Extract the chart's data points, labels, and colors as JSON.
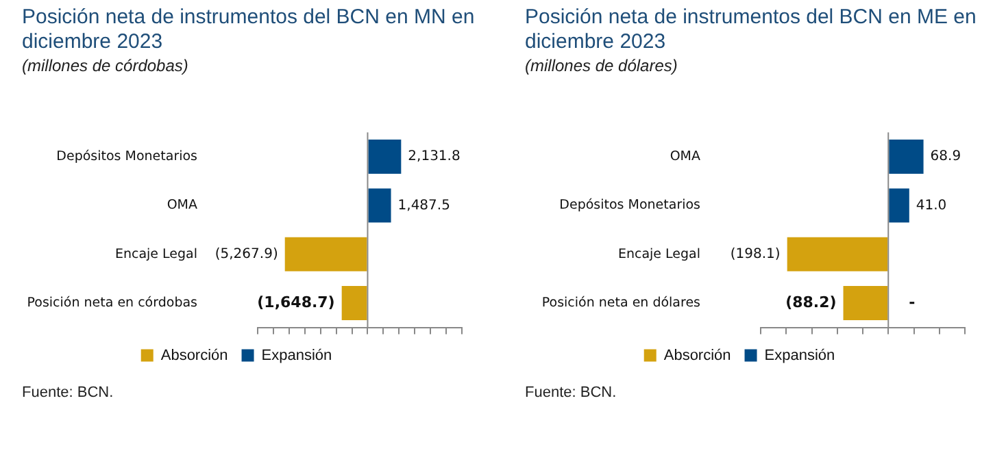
{
  "chart_data": [
    {
      "type": "bar",
      "title": "Posición neta de instrumentos del BCN en MN en diciembre 2023",
      "subtitle": "(millones de córdobas)",
      "orientation": "horizontal",
      "stacked": true,
      "categories": [
        "Depósitos Monetarios",
        "OMA",
        "Encaje Legal",
        "Posición neta en córdobas"
      ],
      "series": [
        {
          "name": "Absorción",
          "color": "#d4a20f",
          "values": [
            null,
            null,
            -5267.9,
            -1648.7
          ],
          "value_labels": [
            null,
            null,
            "(5,267.9)",
            "(1,648.7)"
          ]
        },
        {
          "name": "Expansión",
          "color": "#004b87",
          "values": [
            2131.8,
            1487.5,
            null,
            null
          ],
          "value_labels": [
            "2,131.8",
            "1,487.5",
            null,
            null
          ]
        }
      ],
      "xlim": [
        -7000,
        6000
      ],
      "xticks": [
        {
          "value": -7000,
          "label": null
        },
        {
          "value": -6000,
          "label": null
        },
        {
          "value": -5000,
          "label": null
        },
        {
          "value": -4000,
          "label": null
        },
        {
          "value": -3000,
          "label": null
        },
        {
          "value": -2000,
          "label": null
        },
        {
          "value": -1000,
          "label": null
        },
        {
          "value": 0,
          "label": null
        },
        {
          "value": 1000,
          "label": null
        },
        {
          "value": 2000,
          "label": null
        },
        {
          "value": 3000,
          "label": null
        },
        {
          "value": 4000,
          "label": null
        },
        {
          "value": 5000,
          "label": null
        },
        {
          "value": 6000,
          "label": null
        }
      ],
      "tick_labels": "y",
      "legend": "bottom",
      "annotations": [
        "Fuente: BCN."
      ]
    },
    {
      "type": "bar",
      "title": "Posición neta de instrumentos del BCN en ME en diciembre 2023",
      "subtitle": "(millones de dólares)",
      "orientation": "horizontal",
      "stacked": true,
      "categories": [
        "OMA",
        "Depósitos Monetarios",
        "Encaje Legal",
        "Posición neta en dólares"
      ],
      "series": [
        {
          "name": "Absorción",
          "color": "#d4a20f",
          "values": [
            null,
            null,
            -198.1,
            -88.2
          ],
          "value_labels": [
            null,
            null,
            "(198.1)",
            "(88.2)"
          ]
        },
        {
          "name": "Expansión",
          "color": "#004b87",
          "values": [
            68.9,
            41.0,
            null,
            0
          ],
          "value_labels": [
            "68.9",
            "41.0",
            null,
            "-"
          ]
        }
      ],
      "xlim": [
        -250,
        150
      ],
      "xticks": [
        {
          "value": -250,
          "label": null
        },
        {
          "value": -200,
          "label": null
        },
        {
          "value": -150,
          "label": null
        },
        {
          "value": -100,
          "label": null
        },
        {
          "value": -50,
          "label": null
        },
        {
          "value": 0,
          "label": null
        },
        {
          "value": 50,
          "label": null
        },
        {
          "value": 100,
          "label": null
        },
        {
          "value": 150,
          "label": null
        }
      ],
      "tick_labels": "y",
      "legend": "bottom",
      "annotations": [
        "Fuente: BCN."
      ]
    }
  ]
}
